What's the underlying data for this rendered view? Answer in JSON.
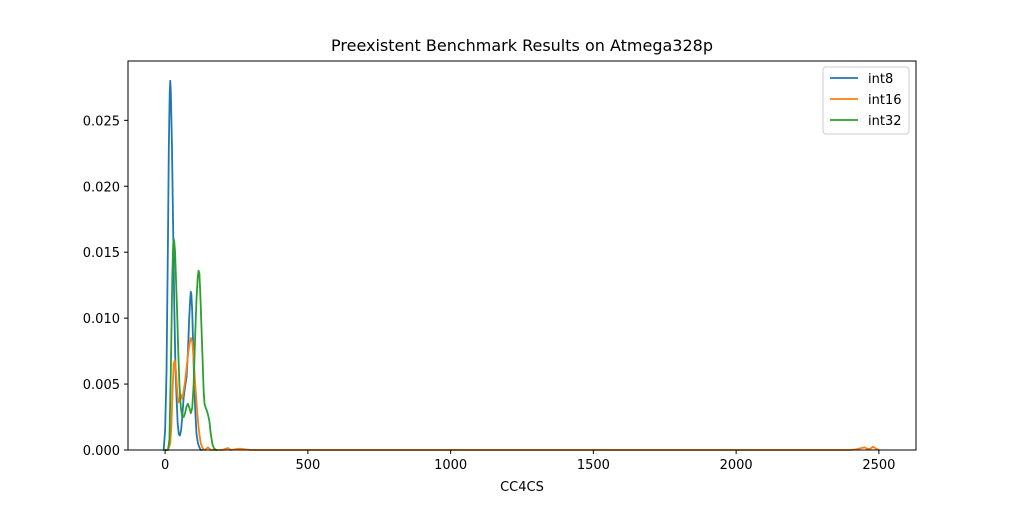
{
  "chart_data": {
    "type": "line",
    "title": "Preexistent Benchmark Results on Atmega328p",
    "xlabel": "CC4CS",
    "ylabel": "",
    "xlim": [
      -130,
      2630
    ],
    "ylim": [
      0.0,
      0.0295
    ],
    "xticks": [
      0,
      500,
      1000,
      1500,
      2000,
      2500
    ],
    "xtick_labels": [
      "0",
      "500",
      "1000",
      "1500",
      "2000",
      "2500"
    ],
    "yticks": [
      0.0,
      0.005,
      0.01,
      0.015,
      0.02,
      0.025
    ],
    "ytick_labels": [
      "0.000",
      "0.005",
      "0.010",
      "0.015",
      "0.020",
      "0.025"
    ],
    "grid": false,
    "legend_position": "top-right",
    "series": [
      {
        "name": "int8",
        "color": "#1f77b4",
        "x": [
          -5,
          0,
          5,
          10,
          13,
          16,
          18,
          20,
          24,
          28,
          32,
          36,
          40,
          44,
          48,
          52,
          56,
          60,
          65,
          70,
          75,
          80,
          84,
          88,
          90,
          92,
          95,
          98,
          102,
          106,
          110,
          115,
          120,
          125,
          130
        ],
        "y": [
          0.0,
          0.0015,
          0.006,
          0.016,
          0.023,
          0.027,
          0.028,
          0.0272,
          0.023,
          0.017,
          0.011,
          0.0065,
          0.004,
          0.002,
          0.0012,
          0.0011,
          0.0015,
          0.0025,
          0.004,
          0.0048,
          0.0055,
          0.0075,
          0.0098,
          0.0115,
          0.012,
          0.0118,
          0.0105,
          0.008,
          0.005,
          0.0028,
          0.0012,
          0.0005,
          0.0002,
          0.0,
          0.0
        ]
      },
      {
        "name": "int16",
        "color": "#ff7f0e",
        "x": [
          0,
          10,
          18,
          22,
          26,
          30,
          34,
          38,
          42,
          46,
          50,
          55,
          60,
          65,
          70,
          75,
          80,
          85,
          90,
          95,
          98,
          100,
          104,
          108,
          112,
          116,
          120,
          125,
          130,
          135,
          140,
          150,
          160,
          200,
          220,
          230,
          260,
          300,
          400,
          700,
          1000,
          1500,
          2000,
          2300,
          2400,
          2420,
          2440,
          2450,
          2460,
          2470,
          2480,
          2490,
          2500
        ],
        "y": [
          0.0,
          0.0,
          0.0005,
          0.0018,
          0.0045,
          0.0065,
          0.0068,
          0.006,
          0.0046,
          0.0036,
          0.0038,
          0.0042,
          0.0039,
          0.0045,
          0.0052,
          0.0062,
          0.0072,
          0.008,
          0.0085,
          0.0082,
          0.0075,
          0.0068,
          0.0055,
          0.0042,
          0.003,
          0.002,
          0.0012,
          0.0005,
          0.0002,
          5e-05,
          0.0,
          0.0002,
          0.0,
          0.0,
          0.00015,
          0.0,
          0.0001,
          0.0,
          0.0,
          0.0,
          0.0,
          0.0,
          0.0,
          0.0,
          0.0,
          5e-05,
          0.00015,
          0.0002,
          8e-05,
          0.0001,
          0.00025,
          0.0001,
          0.0
        ]
      },
      {
        "name": "int32",
        "color": "#2ca02c",
        "x": [
          0,
          10,
          15,
          20,
          25,
          28,
          30,
          32,
          35,
          38,
          42,
          46,
          50,
          55,
          60,
          65,
          70,
          75,
          80,
          85,
          90,
          95,
          100,
          105,
          110,
          114,
          117,
          120,
          123,
          127,
          131,
          135,
          138,
          142,
          146,
          150,
          155,
          160,
          166,
          172,
          180
        ],
        "y": [
          0.0,
          0.0,
          0.0008,
          0.006,
          0.013,
          0.0155,
          0.016,
          0.0158,
          0.015,
          0.013,
          0.0105,
          0.0075,
          0.005,
          0.0032,
          0.0025,
          0.0025,
          0.0028,
          0.0033,
          0.0035,
          0.0032,
          0.0028,
          0.0032,
          0.005,
          0.0085,
          0.0115,
          0.013,
          0.0136,
          0.0134,
          0.012,
          0.0095,
          0.007,
          0.0045,
          0.0035,
          0.0032,
          0.003,
          0.0027,
          0.0022,
          0.0012,
          0.0004,
          0.0001,
          0.0
        ]
      }
    ]
  }
}
